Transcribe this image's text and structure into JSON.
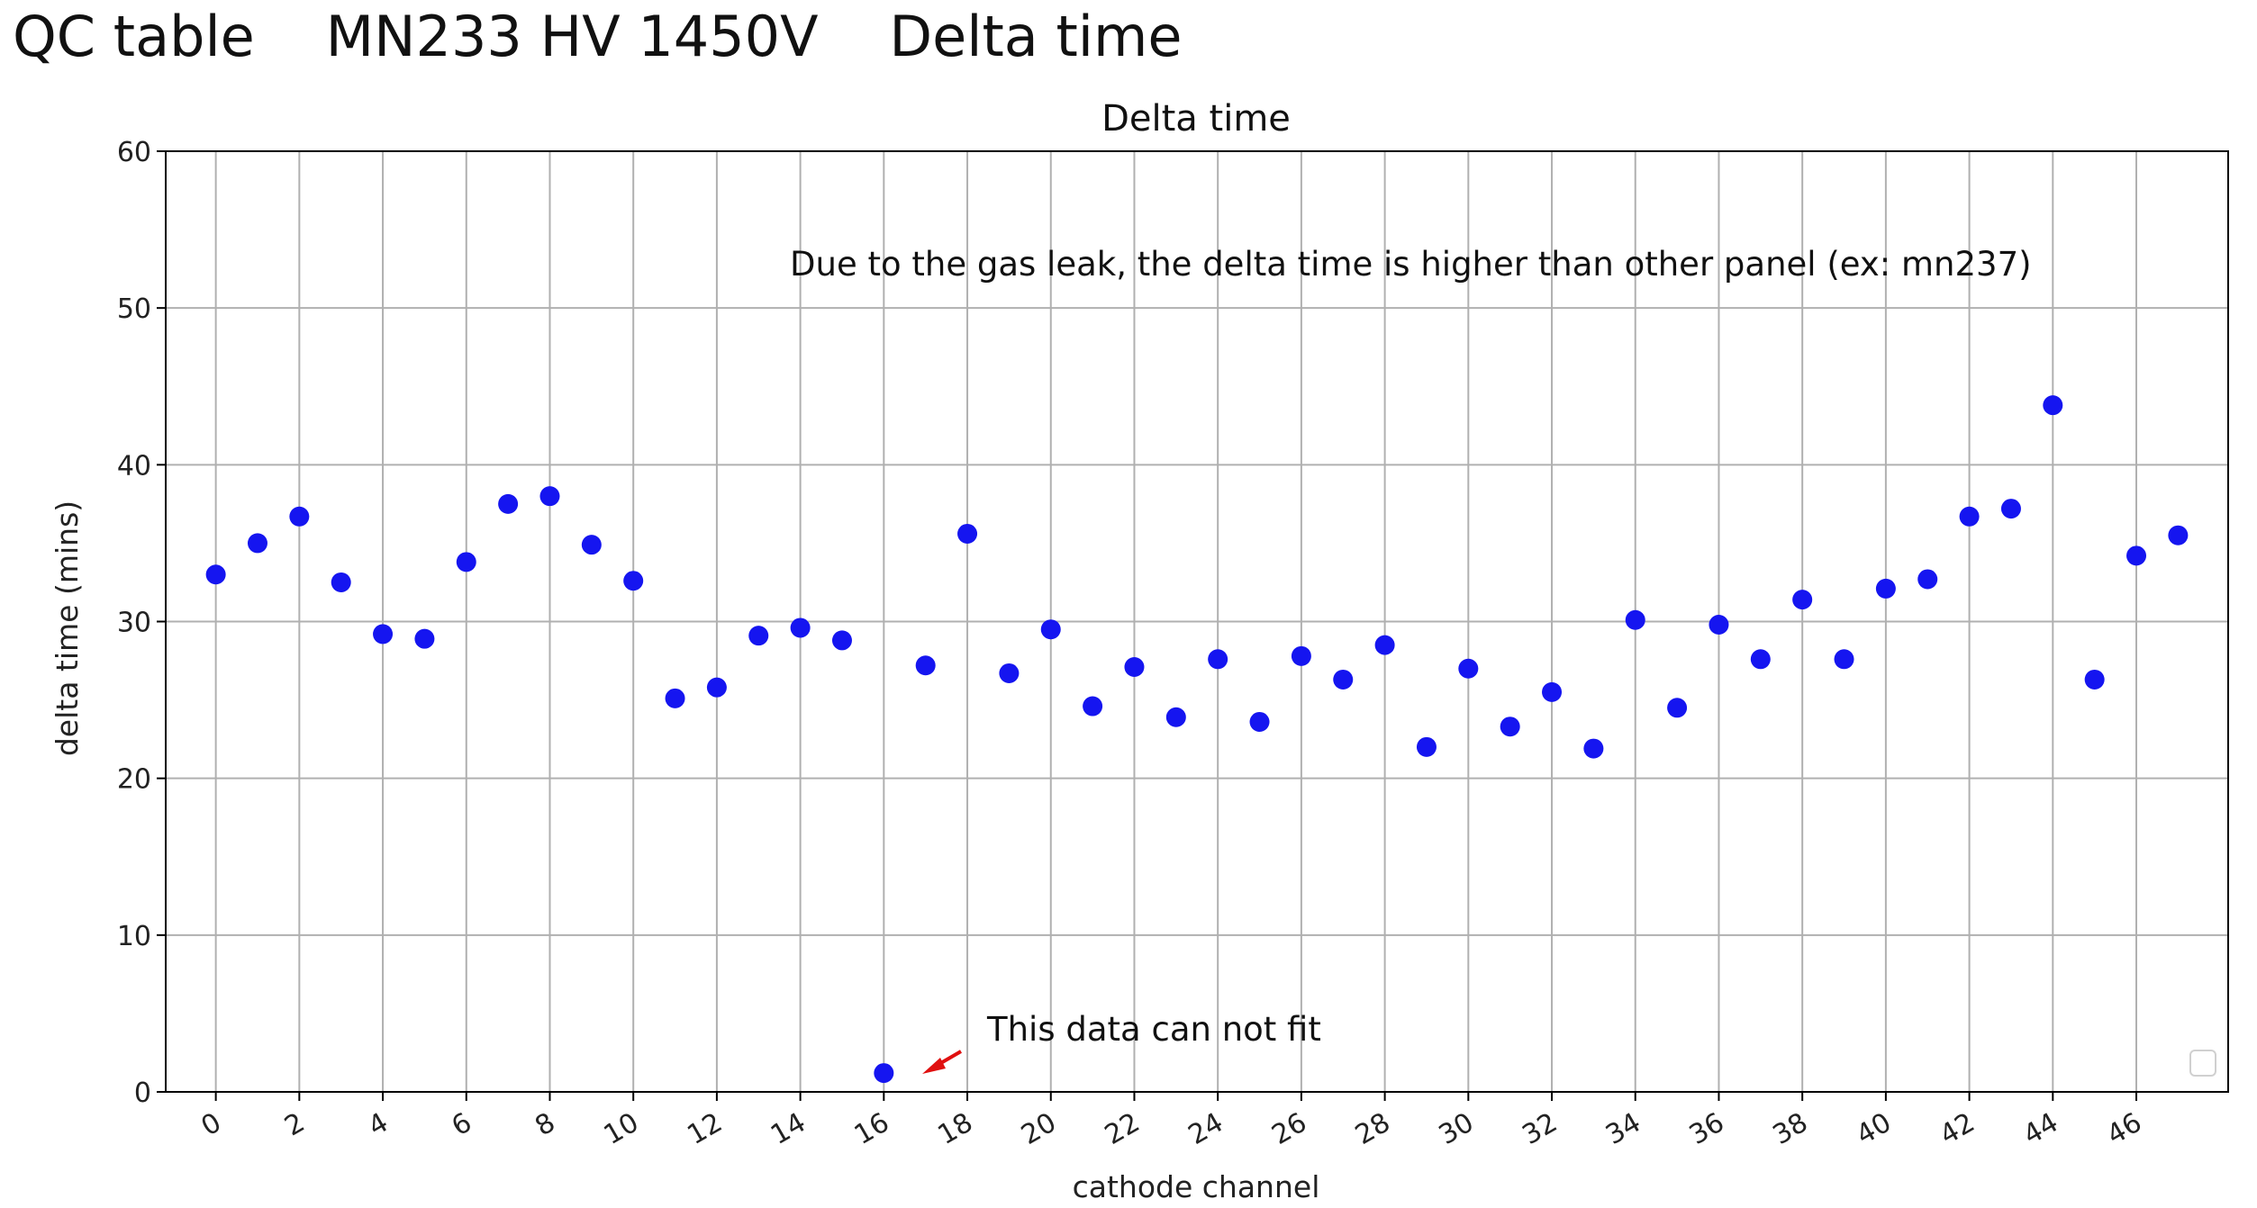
{
  "slide": {
    "title": "QC table    MN233 HV 1450V    Delta time"
  },
  "chart_data": {
    "type": "scatter",
    "title": "Delta time",
    "xlabel": "cathode channel",
    "ylabel": "delta time (mins)",
    "xlim": [
      -1.2,
      48.2
    ],
    "ylim": [
      0,
      60
    ],
    "xticks": [
      0,
      2,
      4,
      6,
      8,
      10,
      12,
      14,
      16,
      18,
      20,
      22,
      24,
      26,
      28,
      30,
      32,
      34,
      36,
      38,
      40,
      42,
      44,
      46
    ],
    "yticks": [
      0,
      10,
      20,
      30,
      40,
      50,
      60
    ],
    "grid": true,
    "marker_color": "#1515f0",
    "x": [
      0,
      1,
      2,
      3,
      4,
      5,
      6,
      7,
      8,
      9,
      10,
      11,
      12,
      13,
      14,
      15,
      16,
      17,
      18,
      19,
      20,
      21,
      22,
      23,
      24,
      25,
      26,
      27,
      28,
      29,
      30,
      31,
      32,
      33,
      34,
      35,
      36,
      37,
      38,
      39,
      40,
      41,
      42,
      43,
      44,
      45,
      46,
      47
    ],
    "y": [
      33.0,
      35.0,
      36.7,
      32.5,
      29.2,
      28.9,
      33.8,
      37.5,
      38.0,
      34.9,
      32.6,
      25.1,
      25.8,
      29.1,
      29.6,
      28.8,
      1.2,
      27.2,
      35.6,
      26.7,
      29.5,
      24.6,
      27.1,
      23.9,
      27.6,
      23.6,
      27.8,
      26.3,
      28.5,
      22.0,
      27.0,
      23.3,
      25.5,
      21.9,
      30.1,
      24.5,
      29.8,
      27.6,
      31.4,
      27.6,
      32.1,
      32.7,
      36.7,
      37.2,
      43.8,
      26.3,
      34.2,
      35.5
    ],
    "annotations": {
      "note": "Due to the gas leak, the delta time is higher than other panel (ex: mn237)",
      "outlier_label": "This data can not fit",
      "arrow_color": "#e01010"
    }
  }
}
